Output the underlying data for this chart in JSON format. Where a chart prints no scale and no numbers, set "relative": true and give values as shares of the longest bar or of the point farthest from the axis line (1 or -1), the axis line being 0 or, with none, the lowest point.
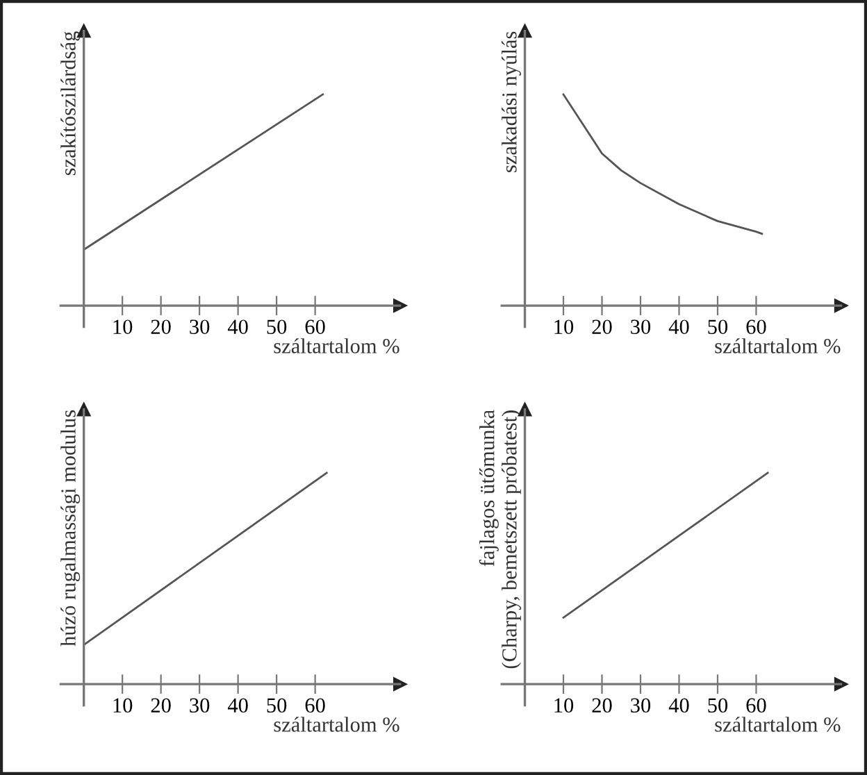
{
  "chart_data": [
    {
      "type": "line",
      "relative": true,
      "xlabel": "száltartalom %",
      "ylabel": "szakítószilárdság",
      "xlim": [
        -6,
        82
      ],
      "xticks": [
        10,
        20,
        30,
        40,
        50,
        60
      ],
      "tick_labels": "x",
      "color": "#555555",
      "x": [
        0,
        62
      ],
      "values": [
        0.265,
        1
      ]
    },
    {
      "type": "line",
      "relative": true,
      "xlabel": "száltartalom %",
      "ylabel": "szakadási nyúlás",
      "xlim": [
        -6,
        82
      ],
      "xticks": [
        10,
        20,
        30,
        40,
        50,
        60
      ],
      "tick_labels": "x",
      "color": "#555555",
      "x": [
        10,
        15,
        20,
        25,
        30,
        40,
        50,
        60,
        61.5
      ],
      "values": [
        1,
        0.86,
        0.72,
        0.64,
        0.58,
        0.48,
        0.4,
        0.35,
        0.34
      ]
    },
    {
      "type": "line",
      "relative": true,
      "xlabel": "száltartalom %",
      "ylabel": "húzó rugalmassági modulus",
      "xlim": [
        -6,
        82
      ],
      "xticks": [
        10,
        20,
        30,
        40,
        50,
        60
      ],
      "tick_labels": "x",
      "color": "#555555",
      "x": [
        0,
        63
      ],
      "values": [
        0.186,
        1
      ]
    },
    {
      "type": "line",
      "relative": true,
      "xlabel": "száltartalom %",
      "ylabel": "fajlagos ütőmunka\n(Charpy, bemetszett próbatest)",
      "xlim": [
        -6,
        82
      ],
      "xticks": [
        10,
        20,
        30,
        40,
        50,
        60
      ],
      "tick_labels": "x",
      "color": "#555555",
      "x": [
        10,
        63
      ],
      "values": [
        0.315,
        1
      ]
    }
  ]
}
